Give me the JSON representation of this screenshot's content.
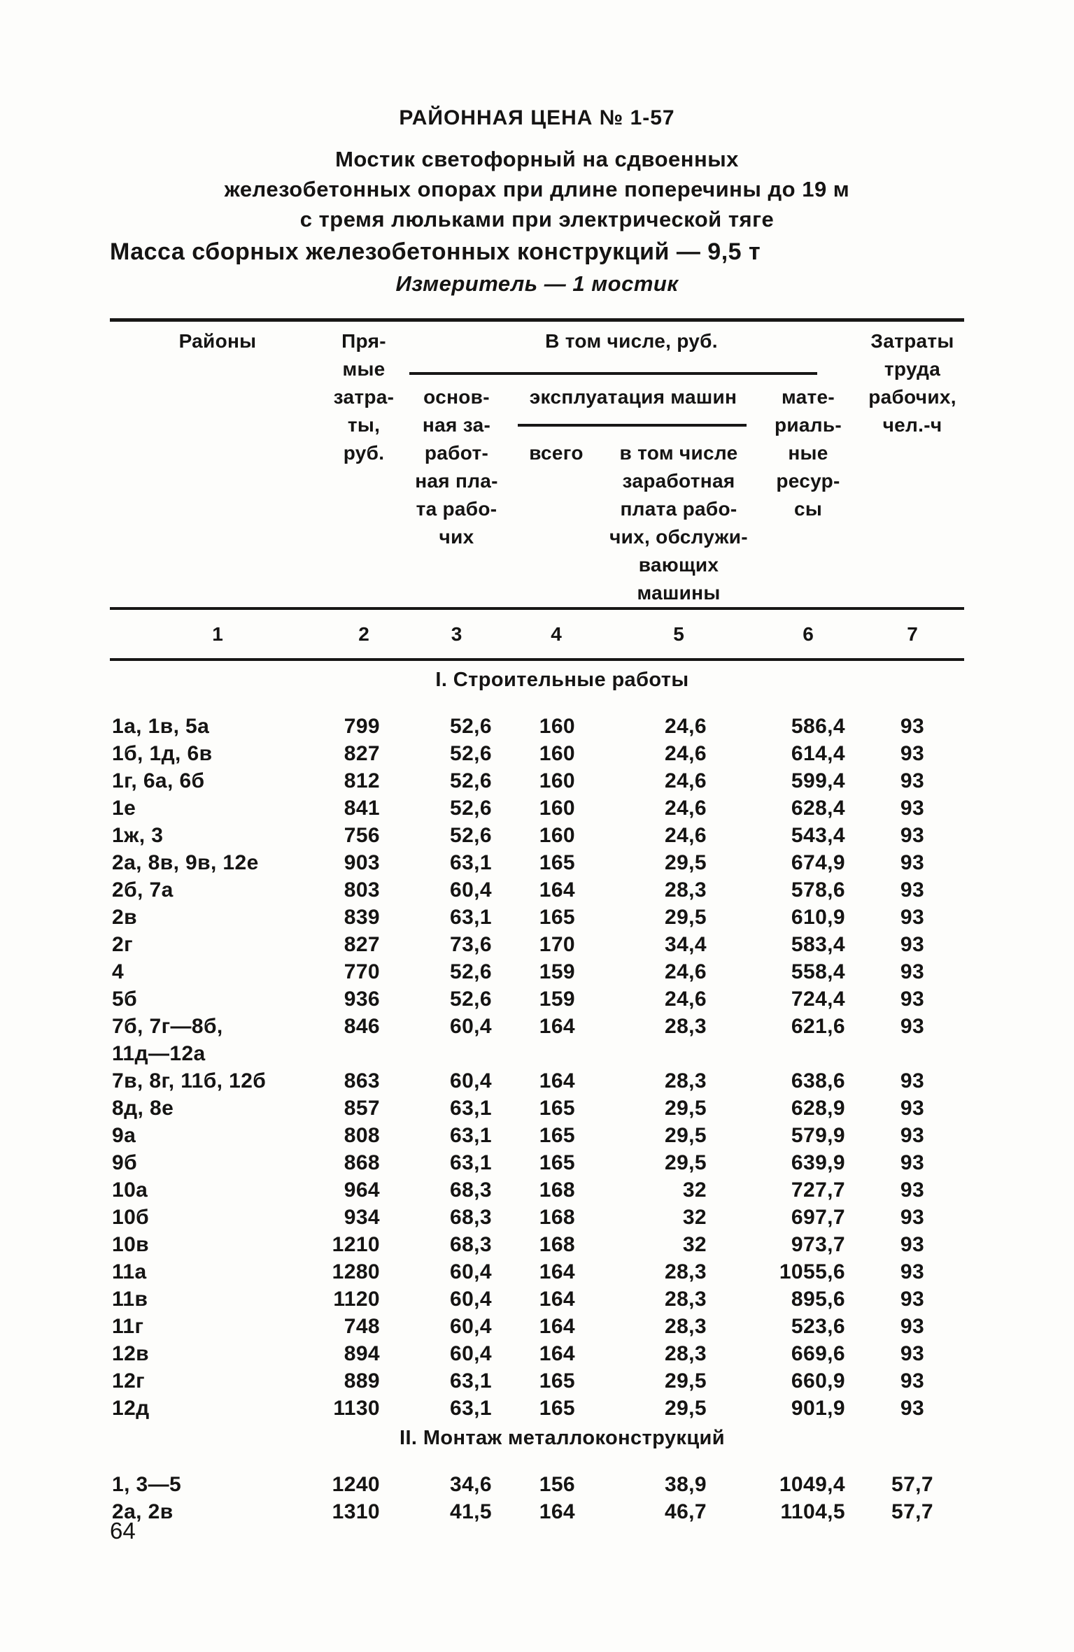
{
  "doc": {
    "price_label": "РАЙОННАЯ ЦЕНА № 1-57",
    "title": "Мостик светофорный на сдвоенных\nжелезобетонных опорах при длине поперечины до 19 м\nс тремя люльками при электрической тяге",
    "mass_note": "Масса сборных железобетонных конструкций — 9,5 т",
    "measure_note": "Измеритель — 1 мостик",
    "page_number": "64"
  },
  "table": {
    "headers": {
      "col1": "Районы",
      "col2": "Пря-\nмые\nзатра-\nты,\nруб.",
      "group_incl": "В том числе, руб.",
      "col3": "основ-\nная за-\nработ-\nная пла-\nта рабо-\nчих",
      "group_mach": "эксплуатация машин",
      "col4": "всего",
      "col5": "в том числе\nзаработная\nплата рабо-\nчих, обслужи-\nвающих\nмашины",
      "col6": "мате-\nриаль-\nные\nресур-\nсы",
      "col7": "Затраты\nтруда\nрабочих,\nчел.-ч"
    },
    "column_numbers": [
      "1",
      "2",
      "3",
      "4",
      "5",
      "6",
      "7"
    ],
    "sections": [
      {
        "title": "I. Строительные работы",
        "rows": [
          [
            "1а, 1в, 5а",
            "799",
            "52,6",
            "160",
            "24,6",
            "586,4",
            "93"
          ],
          [
            "1б, 1д, 6в",
            "827",
            "52,6",
            "160",
            "24,6",
            "614,4",
            "93"
          ],
          [
            "1г, 6а, 6б",
            "812",
            "52,6",
            "160",
            "24,6",
            "599,4",
            "93"
          ],
          [
            "1е",
            "841",
            "52,6",
            "160",
            "24,6",
            "628,4",
            "93"
          ],
          [
            "1ж, 3",
            "756",
            "52,6",
            "160",
            "24,6",
            "543,4",
            "93"
          ],
          [
            "2а, 8в, 9в, 12е",
            "903",
            "63,1",
            "165",
            "29,5",
            "674,9",
            "93"
          ],
          [
            "2б, 7а",
            "803",
            "60,4",
            "164",
            "28,3",
            "578,6",
            "93"
          ],
          [
            "2в",
            "839",
            "63,1",
            "165",
            "29,5",
            "610,9",
            "93"
          ],
          [
            "2г",
            "827",
            "73,6",
            "170",
            "34,4",
            "583,4",
            "93"
          ],
          [
            "4",
            "770",
            "52,6",
            "159",
            "24,6",
            "558,4",
            "93"
          ],
          [
            "5б",
            "936",
            "52,6",
            "159",
            "24,6",
            "724,4",
            "93"
          ],
          [
            "7б, 7г—8б,\n11д—12а",
            "846",
            "60,4",
            "164",
            "28,3",
            "621,6",
            "93"
          ],
          [
            "7в, 8г, 11б, 12б",
            "863",
            "60,4",
            "164",
            "28,3",
            "638,6",
            "93"
          ],
          [
            "8д, 8е",
            "857",
            "63,1",
            "165",
            "29,5",
            "628,9",
            "93"
          ],
          [
            "9а",
            "808",
            "63,1",
            "165",
            "29,5",
            "579,9",
            "93"
          ],
          [
            "9б",
            "868",
            "63,1",
            "165",
            "29,5",
            "639,9",
            "93"
          ],
          [
            "10а",
            "964",
            "68,3",
            "168",
            "32",
            "727,7",
            "93"
          ],
          [
            "10б",
            "934",
            "68,3",
            "168",
            "32",
            "697,7",
            "93"
          ],
          [
            "10в",
            "1210",
            "68,3",
            "168",
            "32",
            "973,7",
            "93"
          ],
          [
            "11а",
            "1280",
            "60,4",
            "164",
            "28,3",
            "1055,6",
            "93"
          ],
          [
            "11в",
            "1120",
            "60,4",
            "164",
            "28,3",
            "895,6",
            "93"
          ],
          [
            "11г",
            "748",
            "60,4",
            "164",
            "28,3",
            "523,6",
            "93"
          ],
          [
            "12в",
            "894",
            "60,4",
            "164",
            "28,3",
            "669,6",
            "93"
          ],
          [
            "12г",
            "889",
            "63,1",
            "165",
            "29,5",
            "660,9",
            "93"
          ],
          [
            "12д",
            "1130",
            "63,1",
            "165",
            "29,5",
            "901,9",
            "93"
          ]
        ]
      },
      {
        "title": "II. Монтаж металлоконструкций",
        "rows": [
          [
            "1, 3—5",
            "1240",
            "34,6",
            "156",
            "38,9",
            "1049,4",
            "57,7"
          ],
          [
            "2а, 2в",
            "1310",
            "41,5",
            "164",
            "46,7",
            "1104,5",
            "57,7"
          ]
        ]
      }
    ]
  }
}
